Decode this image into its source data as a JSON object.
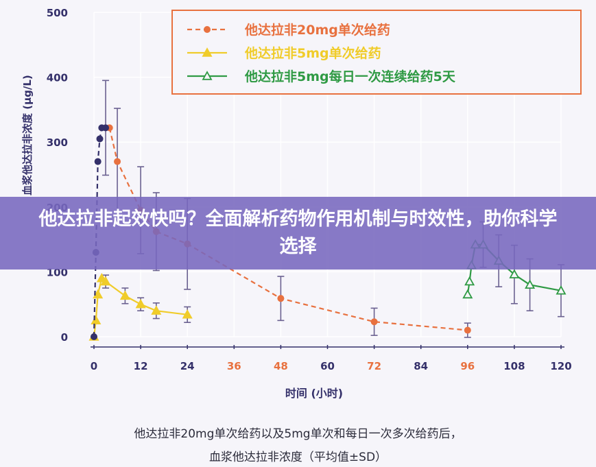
{
  "banner": {
    "text": "他达拉非起效快吗？全面解析药物作用机制与时效性，助你科学选择"
  },
  "caption": {
    "line1": "他达拉非20mg单次给药以及5mg单次和每日一次多次给药后，",
    "line2": "血浆他达拉非浓度（平均值±SD）"
  },
  "colors": {
    "orange": "#e8713f",
    "yellow": "#f0cc2a",
    "green": "#2f9a44",
    "axis": "#34306a",
    "grid": "#ffffff",
    "legend_border": "#e8713f"
  },
  "chart_data": {
    "type": "line",
    "title": "",
    "xlabel": "时间 (小时)",
    "ylabel": "血浆他达拉非浓度 (μg/L)",
    "xlim": [
      0,
      120
    ],
    "ylim": [
      0,
      500
    ],
    "x_ticks": [
      0,
      12,
      24,
      36,
      48,
      60,
      72,
      84,
      96,
      108,
      120
    ],
    "x_tick_labels": [
      "0",
      "12",
      "24",
      "36",
      "48",
      "60",
      "72",
      "84",
      "96",
      "108",
      "120"
    ],
    "x_tick_highlight": [
      36,
      48,
      72,
      96
    ],
    "y_ticks": [
      0,
      100,
      200,
      300,
      400,
      500
    ],
    "y_tick_labels": [
      "0",
      "100",
      "200",
      "300",
      "400",
      "500"
    ],
    "legend_position": "top-right",
    "series": [
      {
        "name": "他达拉非20mg单次给药",
        "color": "orange",
        "marker": "circle",
        "dash": true,
        "points": [
          [
            4,
            322,
            0
          ],
          [
            6,
            270,
            82
          ],
          [
            12,
            195,
            67
          ],
          [
            16,
            162,
            60
          ],
          [
            24,
            143,
            70
          ],
          [
            48,
            59,
            34
          ],
          [
            72,
            23,
            21
          ],
          [
            96,
            10,
            11
          ]
        ]
      },
      {
        "name": "他达拉非5mg单次给药",
        "color": "yellow",
        "marker": "triangle",
        "dash": false,
        "points": [
          [
            0,
            0,
            0
          ],
          [
            0.5,
            25,
            0
          ],
          [
            1,
            65,
            0
          ],
          [
            2,
            90,
            0
          ],
          [
            3,
            85,
            10
          ],
          [
            8,
            63,
            12
          ],
          [
            12,
            50,
            10
          ],
          [
            16,
            40,
            12
          ],
          [
            24,
            34,
            12
          ]
        ]
      },
      {
        "name": "他达拉非5mg每日一次连续给药5天",
        "color": "green",
        "marker": "triangle-open",
        "dash": false,
        "points": [
          [
            96,
            65,
            0
          ],
          [
            96.5,
            85,
            0
          ],
          [
            97,
            110,
            0
          ],
          [
            98,
            142,
            0
          ],
          [
            100,
            142,
            35
          ],
          [
            104,
            117,
            40
          ],
          [
            108,
            96,
            45
          ],
          [
            112,
            80,
            40
          ],
          [
            120,
            71,
            40
          ]
        ]
      },
      {
        "name": "",
        "color": "axis",
        "marker": "dot",
        "dash": true,
        "points": [
          [
            0,
            0,
            0
          ],
          [
            0.5,
            130,
            0
          ],
          [
            1,
            270,
            0
          ],
          [
            1.5,
            305,
            0
          ],
          [
            2,
            322,
            0
          ],
          [
            3,
            322,
            73
          ]
        ]
      }
    ]
  }
}
